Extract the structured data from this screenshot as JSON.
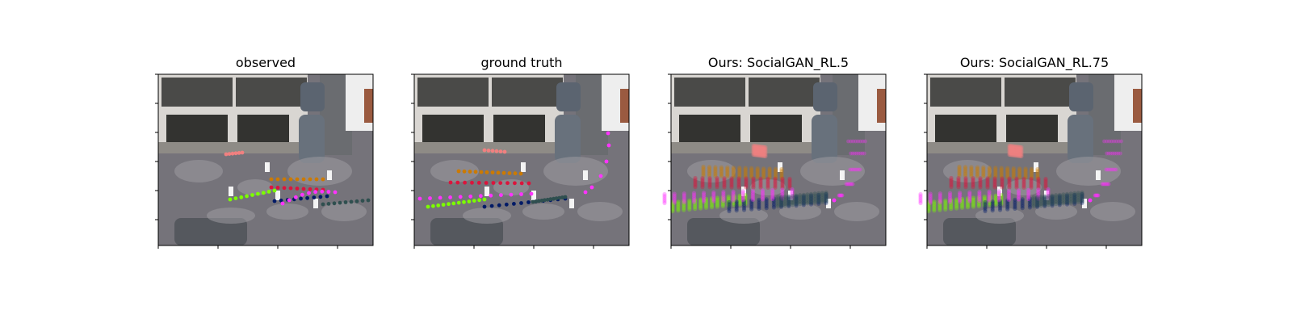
{
  "chart_data": [
    {
      "type": "scatter",
      "title": "observed",
      "series_colors": [
        "#f08080",
        "#cc7a00",
        "#dc143c",
        "#7cfc00",
        "#001a66",
        "#ff33ff",
        "#2f4f4f"
      ]
    },
    {
      "type": "scatter",
      "title": "ground truth",
      "series_colors": [
        "#f08080",
        "#cc7a00",
        "#dc143c",
        "#7cfc00",
        "#001a66",
        "#ff33ff",
        "#2f4f4f"
      ]
    },
    {
      "type": "scatter",
      "title": "Ours: SocialGAN_RL.5",
      "series_colors": [
        "#f08080",
        "#cc7a00",
        "#dc143c",
        "#7cfc00",
        "#001a66",
        "#ff33ff",
        "#2f4f4f"
      ]
    },
    {
      "type": "scatter",
      "title": "Ours: SocialGAN_RL.75",
      "series_colors": [
        "#f08080",
        "#cc7a00",
        "#dc143c",
        "#7cfc00",
        "#001a66",
        "#ff33ff",
        "#2f4f4f"
      ]
    }
  ]
}
